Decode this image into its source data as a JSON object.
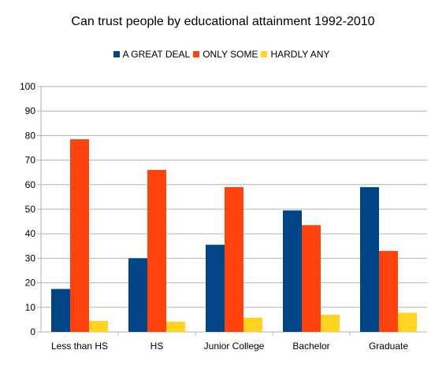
{
  "chart_data": {
    "type": "bar",
    "title": "Can trust people by educational attainment 1992-2010",
    "categories": [
      "Less than HS",
      "HS",
      "Junior College",
      "Bachelor",
      "Graduate"
    ],
    "series": [
      {
        "name": "A GREAT DEAL",
        "color": "#004586",
        "values": [
          17.5,
          30,
          35.5,
          49.5,
          59
        ]
      },
      {
        "name": "ONLY SOME",
        "color": "#ff420e",
        "values": [
          78.5,
          66,
          59,
          43.5,
          33
        ]
      },
      {
        "name": "HARDLY ANY",
        "color": "#ffd320",
        "values": [
          4.5,
          4.2,
          5.8,
          7,
          7.8
        ]
      }
    ],
    "xlabel": "",
    "ylabel": "",
    "ylim": [
      0,
      100
    ],
    "yticks": [
      0,
      10,
      20,
      30,
      40,
      50,
      60,
      70,
      80,
      90,
      100
    ],
    "grid": true,
    "legend_position": "top"
  }
}
